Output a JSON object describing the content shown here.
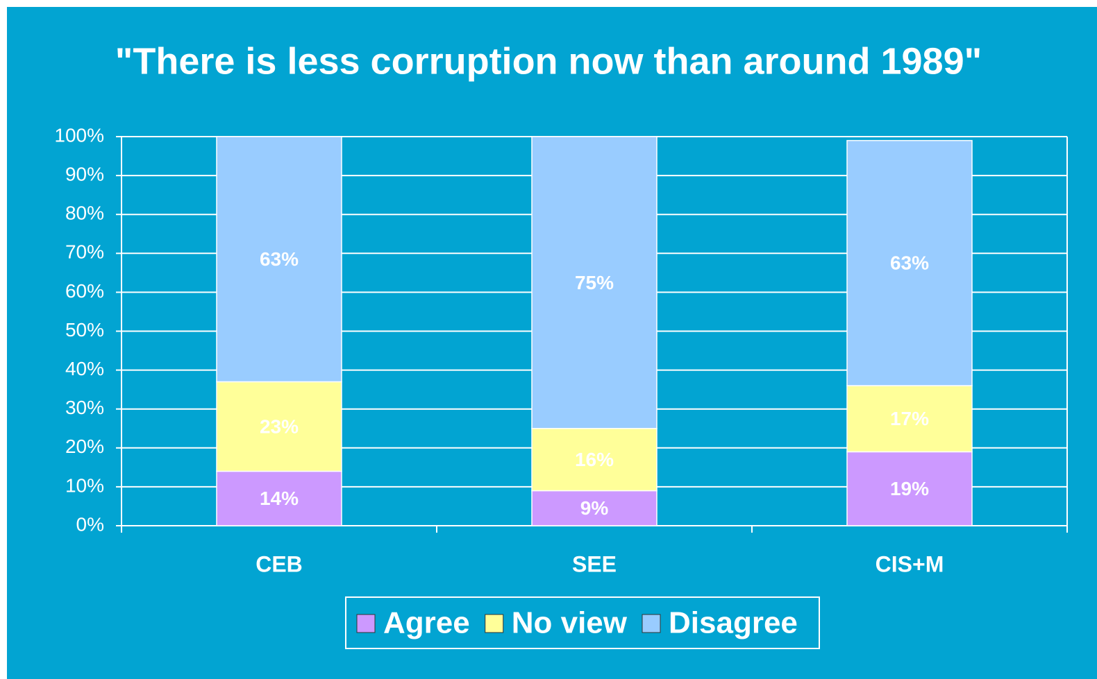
{
  "chart_data": {
    "type": "stacked_bar",
    "title": "\"There is less corruption now than around 1989\"",
    "categories": [
      "CEB",
      "SEE",
      "CIS+M"
    ],
    "series": [
      {
        "name": "Agree",
        "color": "#cc99ff",
        "values": [
          14,
          9,
          19
        ],
        "value_labels": [
          "14%",
          "9%",
          "19%"
        ]
      },
      {
        "name": "No view",
        "color": "#ffff99",
        "values": [
          23,
          16,
          17
        ],
        "value_labels": [
          "23%",
          "16%",
          "17%"
        ]
      },
      {
        "name": "Disagree",
        "color": "#99ccff",
        "values": [
          63,
          75,
          63
        ],
        "value_labels": [
          "63%",
          "75%",
          "63%"
        ]
      }
    ],
    "ylim": [
      0,
      100
    ],
    "yticks": [
      {
        "value": 0,
        "label": "0%"
      },
      {
        "value": 10,
        "label": "10%"
      },
      {
        "value": 20,
        "label": "20%"
      },
      {
        "value": 30,
        "label": "30%"
      },
      {
        "value": 40,
        "label": "40%"
      },
      {
        "value": 50,
        "label": "50%"
      },
      {
        "value": 60,
        "label": "60%"
      },
      {
        "value": 70,
        "label": "70%"
      },
      {
        "value": 80,
        "label": "80%"
      },
      {
        "value": 90,
        "label": "90%"
      },
      {
        "value": 100,
        "label": "100%"
      }
    ],
    "grid": true
  }
}
